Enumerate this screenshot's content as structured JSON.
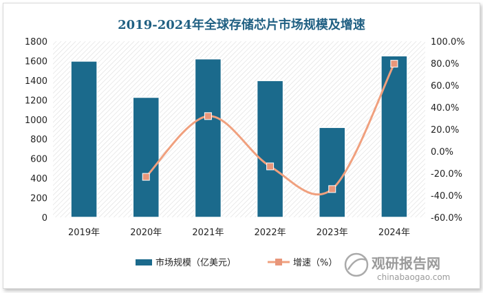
{
  "chart_data": {
    "type": "bar",
    "title": "2019-2024年全球存储芯片市场规模及增速",
    "categories": [
      "2019年",
      "2020年",
      "2021年",
      "2022年",
      "2023年",
      "2024年"
    ],
    "series": [
      {
        "name": "市场规模（亿美元）",
        "type": "bar",
        "axis": "left",
        "values": [
          1597,
          1227,
          1620,
          1398,
          919,
          1651
        ]
      },
      {
        "name": "增速（%）",
        "type": "line",
        "axis": "right",
        "values": [
          null,
          -23.2,
          32.0,
          -13.7,
          -34.3,
          79.6
        ]
      }
    ],
    "y_left": {
      "min": 0,
      "max": 1800,
      "step": 200,
      "ticks": [
        "0",
        "200",
        "400",
        "600",
        "800",
        "1000",
        "1200",
        "1400",
        "1600",
        "1800"
      ]
    },
    "y_right": {
      "min": -60,
      "max": 100,
      "step": 20,
      "ticks": [
        "-60.0%",
        "-40.0%",
        "-20.0%",
        "0.0%",
        "20.0%",
        "40.0%",
        "60.0%",
        "80.0%",
        "100.0%"
      ]
    },
    "colors": {
      "bar": "#1b6a8c",
      "line": "#f0a07e",
      "marker": "#e8967a",
      "title": "#1f5f82"
    },
    "legend_position": "bottom",
    "grid": false
  },
  "watermark": {
    "cn": "观研报告网",
    "en": "chinabaogao.com"
  }
}
